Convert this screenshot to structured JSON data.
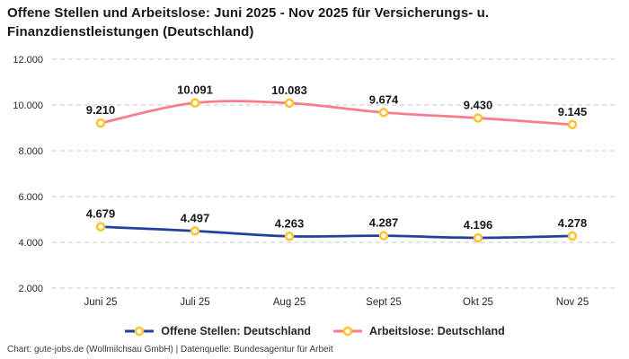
{
  "title": "Offene Stellen und Arbeitslose: Juni 2025 - Nov 2025 für Versicherungs- u. Finanzdienstleistungen (Deutschland)",
  "footer": "Chart: gute-jobs.de (Wollmilchsau GmbH) | Datenquelle: Bundesagentur für Arbeit",
  "colors": {
    "offene_stellen": "#22409e",
    "arbeitslose": "#f97b8f",
    "marker_ring": "#fdc32f",
    "marker_fill": "#ffffff",
    "gridline": "#c7c7c7",
    "data_label": "#17171f",
    "axis_label": "#26262e"
  },
  "chart_data": {
    "type": "line",
    "categories": [
      "Juni 25",
      "Juli 25",
      "Aug 25",
      "Sept 25",
      "Okt 25",
      "Nov 25"
    ],
    "series": [
      {
        "key": "offene-stellen",
        "name": "Offene Stellen: Deutschland",
        "values": [
          4679,
          4497,
          4263,
          4287,
          4196,
          4278
        ],
        "labels": [
          "4.679",
          "4.497",
          "4.263",
          "4.287",
          "4.196",
          "4.278"
        ],
        "color_key": "offene_stellen"
      },
      {
        "key": "arbeitslose",
        "name": "Arbeitslose: Deutschland",
        "values": [
          9210,
          10091,
          10083,
          9674,
          9430,
          9145
        ],
        "labels": [
          "9.210",
          "10.091",
          "10.083",
          "9.674",
          "9.430",
          "9.145"
        ],
        "color_key": "arbeitslose"
      }
    ],
    "y_ticks": [
      {
        "value": 2000,
        "label": "2.000"
      },
      {
        "value": 4000,
        "label": "4.000"
      },
      {
        "value": 6000,
        "label": "6.000"
      },
      {
        "value": 8000,
        "label": "8.000"
      },
      {
        "value": 10000,
        "label": "10.000"
      },
      {
        "value": 12000,
        "label": "12.000"
      }
    ],
    "ylim": [
      2000,
      12000
    ],
    "grid": "dashed-horizontal",
    "legend_position": "bottom",
    "marker": "circle-ring"
  }
}
